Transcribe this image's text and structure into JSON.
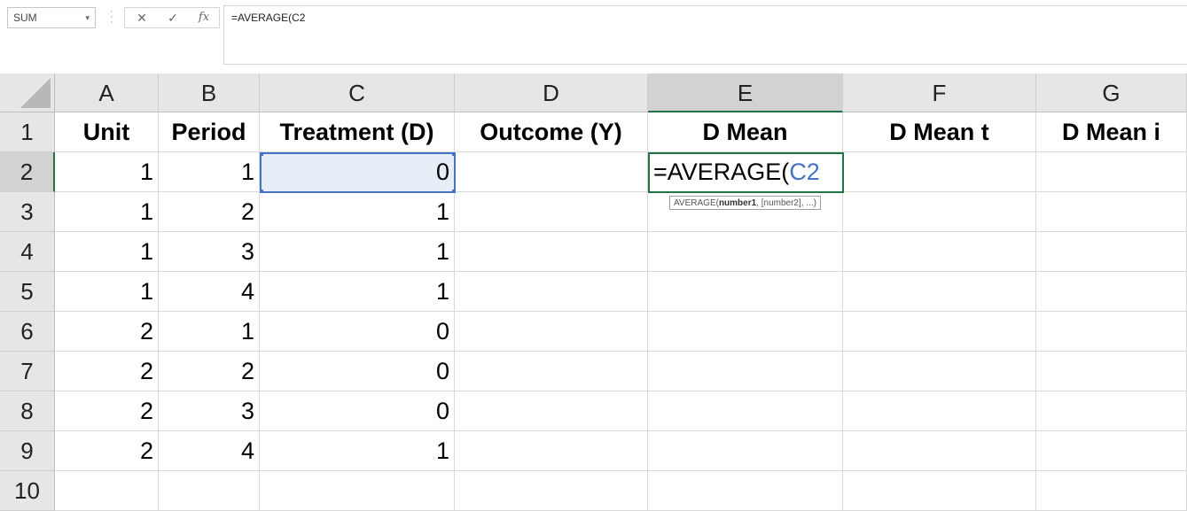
{
  "formula_bar": {
    "name_box": "SUM",
    "name_box_arrow": "▾",
    "cancel": "✕",
    "enter": "✓",
    "fx": "fx",
    "formula": "=AVERAGE(C2"
  },
  "columns": [
    "A",
    "B",
    "C",
    "D",
    "E",
    "F",
    "G"
  ],
  "rows": [
    "1",
    "2",
    "3",
    "4",
    "5",
    "6",
    "7",
    "8",
    "9",
    "10"
  ],
  "headers": [
    "Unit",
    "Period",
    "Treatment (D)",
    "Outcome (Y)",
    "D Mean",
    "D Mean t",
    "D Mean i"
  ],
  "data": [
    [
      "1",
      "1",
      "0"
    ],
    [
      "1",
      "2",
      "1"
    ],
    [
      "1",
      "3",
      "1"
    ],
    [
      "1",
      "4",
      "1"
    ],
    [
      "2",
      "1",
      "0"
    ],
    [
      "2",
      "2",
      "0"
    ],
    [
      "2",
      "3",
      "0"
    ],
    [
      "2",
      "4",
      "1"
    ]
  ],
  "editing": {
    "prefix": "=AVERAGE(",
    "reference": "C2",
    "reference_color": "#4472c4"
  },
  "tooltip": {
    "fn": "AVERAGE(",
    "arg1": "number1",
    "rest": ", [number2], ...)"
  },
  "colors": {
    "selection_green": "#217346",
    "header_bg": "#e6e6e6"
  }
}
